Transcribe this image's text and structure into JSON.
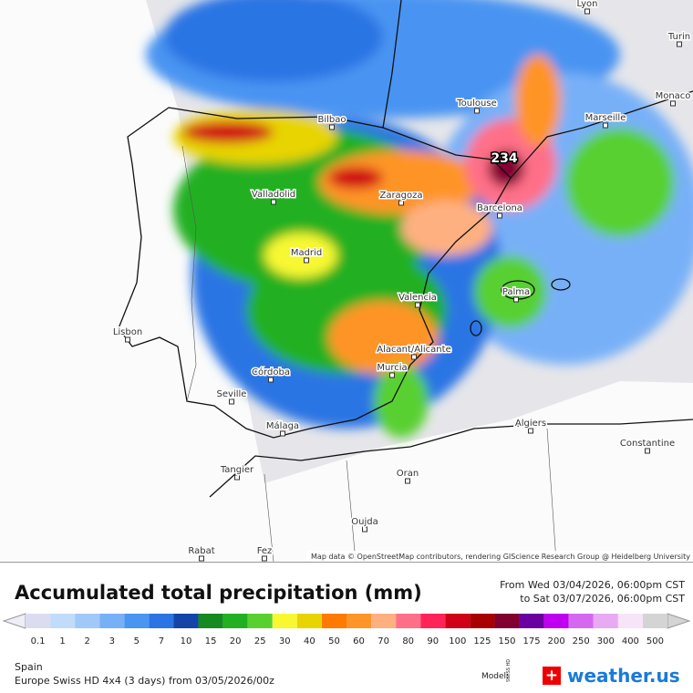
{
  "map": {
    "peak_label": "234",
    "cities": [
      "Lyon",
      "Turin",
      "Monaco",
      "Toulouse",
      "Marseille",
      "Bilbao",
      "Valladolid",
      "Zaragoza",
      "Barcelona",
      "Madrid",
      "Valencia",
      "Palma",
      "Lisbon",
      "Alacant/Alicante",
      "Murcia",
      "Córdoba",
      "Seville",
      "Málaga",
      "Algiers",
      "Constantine",
      "Tangier",
      "Oran",
      "Oujda",
      "Rabat",
      "Fez"
    ],
    "attribution": "Map data © OpenStreetMap contributors, rendering GIScience Research Group @ Heidelberg University"
  },
  "header": {
    "title": "Accumulated total precipitation (mm)",
    "from": "From Wed 03/04/2026, 06:00pm CST",
    "to": "to Sat 03/07/2026, 06:00pm CST"
  },
  "legend": {
    "items": [
      {
        "value": 0.1,
        "color": "#dcdcf0"
      },
      {
        "value": 1,
        "color": "#c0dcfa"
      },
      {
        "value": 2,
        "color": "#a0c8f8"
      },
      {
        "value": 3,
        "color": "#78b0f8"
      },
      {
        "value": 5,
        "color": "#4a94f2"
      },
      {
        "value": 7,
        "color": "#2a74e4"
      },
      {
        "value": 10,
        "color": "#1444a8"
      },
      {
        "value": 15,
        "color": "#148a20"
      },
      {
        "value": 20,
        "color": "#22b022"
      },
      {
        "value": 25,
        "color": "#58d030"
      },
      {
        "value": 30,
        "color": "#f8f830"
      },
      {
        "value": 40,
        "color": "#e8d400"
      },
      {
        "value": 50,
        "color": "#ff7a00"
      },
      {
        "value": 60,
        "color": "#ff9428"
      },
      {
        "value": 70,
        "color": "#ffb080"
      },
      {
        "value": 80,
        "color": "#ff7088"
      },
      {
        "value": 90,
        "color": "#ff2458"
      },
      {
        "value": 100,
        "color": "#d00018"
      },
      {
        "value": 125,
        "color": "#a80000"
      },
      {
        "value": 150,
        "color": "#820030"
      },
      {
        "value": 175,
        "color": "#6a00a0"
      },
      {
        "value": 200,
        "color": "#c000f0"
      },
      {
        "value": 250,
        "color": "#d468f0"
      },
      {
        "value": 300,
        "color": "#e8aaf2"
      },
      {
        "value": 400,
        "color": "#f8e4f8"
      },
      {
        "value": 500,
        "color": "#d4d4d4"
      }
    ]
  },
  "footer": {
    "region": "Spain",
    "model_run": "Europe Swiss HD 4x4 (3 days) from 03/05/2026/00z",
    "model_label": "Model:",
    "model_badge": "SWISS HD",
    "brand": "weather.us"
  }
}
